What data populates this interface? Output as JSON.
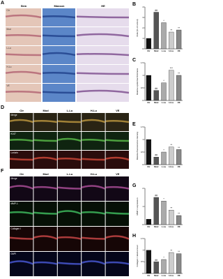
{
  "panel_a": {
    "label": "A",
    "columns": [
      "Skin",
      "Masson",
      "HE"
    ],
    "rows": [
      "Ctr",
      "Mod",
      "L-Lu",
      "H-Lu",
      "VE"
    ]
  },
  "panel_d": {
    "label": "D",
    "columns": [
      "Ctr",
      "Mod",
      "L-Lu",
      "H-Lu",
      "VE"
    ],
    "rows": [
      "Merge",
      "Ki-67",
      "Loricrin"
    ]
  },
  "panel_f": {
    "label": "F",
    "columns": [
      "Ctr",
      "Mod",
      "L-Lu",
      "H-Lu",
      "VE"
    ],
    "rows": [
      "Merge",
      "MMP-1",
      "Collagen I",
      "DAPI"
    ]
  },
  "charts": [
    {
      "label": "B",
      "type": "bar",
      "y_label": "DHE (% of control)",
      "categories": [
        "Ctr",
        "Mod",
        "L-Lu",
        "H-Lu",
        "VE"
      ],
      "values": [
        1.0,
        3.5,
        2.5,
        1.6,
        1.8
      ],
      "colors": [
        "#111111",
        "#555555",
        "#aaaaaa",
        "#cccccc",
        "#888888"
      ],
      "annotations": [
        null,
        "##",
        "*",
        "**",
        "**"
      ],
      "ylim": [
        0,
        4
      ],
      "yticks": [
        0,
        1,
        2,
        3,
        4
      ]
    },
    {
      "label": "C",
      "type": "bar",
      "y_label": "Relative epidermal thickness",
      "categories": [
        "Ctr",
        "Mod",
        "L-Lu",
        "H-Lu",
        "VE"
      ],
      "values": [
        1.0,
        0.4,
        0.7,
        1.2,
        1.0
      ],
      "colors": [
        "#111111",
        "#555555",
        "#aaaaaa",
        "#cccccc",
        "#888888"
      ],
      "annotations": [
        null,
        "##",
        "*",
        "***",
        "**"
      ],
      "ylim": [
        0,
        1.5
      ],
      "yticks": [
        0,
        0.5,
        1,
        1.5
      ]
    },
    {
      "label": "E",
      "type": "bar",
      "y_label": "Relative fluorescence intensity",
      "categories": [
        "Ctr",
        "Mod",
        "L-Lu",
        "H-Lu",
        "VE"
      ],
      "values": [
        1.0,
        0.3,
        0.5,
        0.7,
        0.6
      ],
      "colors": [
        "#111111",
        "#555555",
        "#aaaaaa",
        "#cccccc",
        "#888888"
      ],
      "annotations": [
        null,
        "##",
        "*",
        "**",
        "**"
      ],
      "ylim": [
        0,
        1.5
      ],
      "yticks": [
        0,
        0.5,
        1,
        1.5
      ]
    },
    {
      "label": "G",
      "type": "bar",
      "y_label": "MMP-1 expression",
      "categories": [
        "Ctr",
        "Mod",
        "L-Lu",
        "H-Lu",
        "VE"
      ],
      "values": [
        0.3,
        1.5,
        1.3,
        0.8,
        0.5
      ],
      "colors": [
        "#111111",
        "#555555",
        "#aaaaaa",
        "#cccccc",
        "#888888"
      ],
      "annotations": [
        null,
        "##",
        "*",
        "**",
        "**"
      ],
      "ylim": [
        0,
        2
      ],
      "yticks": [
        0,
        1,
        2
      ]
    },
    {
      "label": "H",
      "type": "bar",
      "y_label": "Collagen I relative level",
      "categories": [
        "Ctr",
        "Mod",
        "L-Lu",
        "H-Lu",
        "VE"
      ],
      "values": [
        1.0,
        0.5,
        0.6,
        0.9,
        0.85
      ],
      "colors": [
        "#111111",
        "#555555",
        "#aaaaaa",
        "#cccccc",
        "#888888"
      ],
      "annotations": [
        null,
        "##",
        "*",
        "**",
        "**"
      ],
      "ylim": [
        0,
        1.5
      ],
      "yticks": [
        0,
        0.5,
        1,
        1.5
      ]
    }
  ]
}
